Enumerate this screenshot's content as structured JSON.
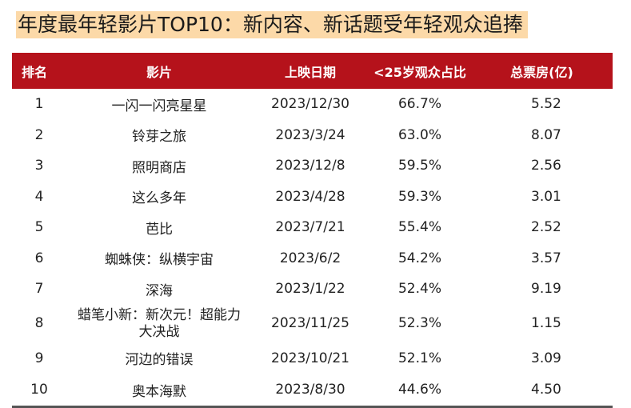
{
  "title": "年度最年轻影片TOP10：新内容、新话题受年轻观众追捧",
  "colors": {
    "header_bg": "#b5121b",
    "title_highlight": "#fcd9a8"
  },
  "table": {
    "headers": [
      "排名",
      "影片",
      "上映日期",
      "<25岁观众占比",
      "总票房(亿)"
    ],
    "rows": [
      [
        "1",
        "一闪一闪亮星星",
        "2023/12/30",
        "66.7%",
        "5.52"
      ],
      [
        "2",
        "铃芽之旅",
        "2023/3/24",
        "63.0%",
        "8.07"
      ],
      [
        "3",
        "照明商店",
        "2023/12/8",
        "59.5%",
        "2.56"
      ],
      [
        "4",
        "这么多年",
        "2023/4/28",
        "59.3%",
        "3.01"
      ],
      [
        "5",
        "芭比",
        "2023/7/21",
        "55.4%",
        "2.52"
      ],
      [
        "6",
        "蜘蛛侠：纵横宇宙",
        "2023/6/2",
        "54.2%",
        "3.57"
      ],
      [
        "7",
        "深海",
        "2023/1/22",
        "52.4%",
        "9.19"
      ],
      [
        "8",
        "蜡笔小新：新次元！超能力大决战",
        "2023/11/25",
        "52.3%",
        "1.15"
      ],
      [
        "9",
        "河边的错误",
        "2023/10/21",
        "52.1%",
        "3.09"
      ],
      [
        "10",
        "奥本海默",
        "2023/8/30",
        "44.6%",
        "4.50"
      ]
    ]
  }
}
